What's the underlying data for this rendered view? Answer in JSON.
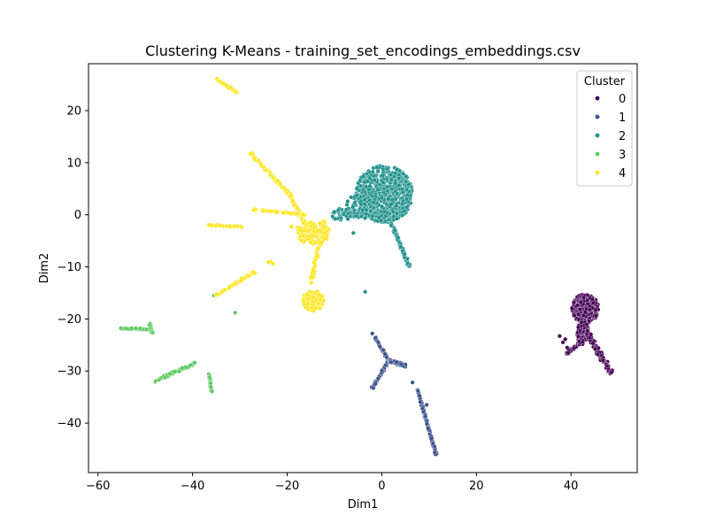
{
  "chart_data": {
    "type": "scatter",
    "title": "Clustering K-Means - training_set_encodings_embeddings.csv",
    "xlabel": "Dim1",
    "ylabel": "Dim2",
    "xlim": [
      -62,
      54
    ],
    "ylim": [
      -49.5,
      29
    ],
    "xticks": [
      -60,
      -40,
      -20,
      0,
      20,
      40
    ],
    "yticks": [
      -40,
      -30,
      -20,
      -10,
      0,
      10,
      20
    ],
    "grid": false,
    "legend": {
      "title": "Cluster",
      "placement": "top-right"
    },
    "series": [
      {
        "name": "0",
        "color": "#440154",
        "blobs": [
          {
            "cx": 43,
            "cy": -18,
            "rx": 2.8,
            "ry": 2.8,
            "n": 320
          },
          {
            "cx": 42.5,
            "cy": -22.5,
            "rx": 1.2,
            "ry": 2.5,
            "n": 80
          }
        ],
        "segments": [
          {
            "from": [
              43,
              -22
            ],
            "to": [
              48.5,
              -30.5
            ],
            "n": 110,
            "spread": 0.9
          },
          {
            "from": [
              42.5,
              -24
            ],
            "to": [
              39,
              -26.8
            ],
            "n": 45,
            "spread": 0.5
          }
        ],
        "points": [
          [
            37.6,
            -23.3
          ],
          [
            38.3,
            -24.5
          ],
          [
            38.8,
            -23.9
          ],
          [
            39.2,
            -25.5
          ]
        ]
      },
      {
        "name": "1",
        "color": "#3b528b",
        "blobs": [],
        "segments": [
          {
            "from": [
              -1.5,
              -23.5
            ],
            "to": [
              1.5,
              -28
            ],
            "n": 40,
            "spread": 0.35
          },
          {
            "from": [
              1.5,
              -28
            ],
            "to": [
              -2,
              -33.3
            ],
            "n": 55,
            "spread": 0.4
          },
          {
            "from": [
              1.5,
              -28
            ],
            "to": [
              5,
              -29
            ],
            "n": 35,
            "spread": 0.5
          },
          {
            "from": [
              7.5,
              -33.5
            ],
            "to": [
              11.5,
              -46
            ],
            "n": 120,
            "spread": 0.3
          }
        ],
        "points": [
          [
            -2,
            -22.8
          ],
          [
            6.5,
            -32.2
          ],
          [
            9.5,
            -36.5
          ]
        ]
      },
      {
        "name": "2",
        "color": "#21918c",
        "blobs": [
          {
            "cx": 0.5,
            "cy": 4,
            "rx": 6,
            "ry": 5.5,
            "n": 650
          },
          {
            "cx": -4.5,
            "cy": 1.5,
            "rx": 3,
            "ry": 2.5,
            "n": 90
          },
          {
            "cx": -8.5,
            "cy": 0,
            "rx": 2,
            "ry": 1.2,
            "n": 30
          }
        ],
        "segments": [
          {
            "from": [
              2,
              -1.5
            ],
            "to": [
              5.8,
              -10
            ],
            "n": 70,
            "spread": 0.5
          }
        ],
        "points": [
          [
            -6,
            -3.5
          ],
          [
            -3.5,
            -14.8
          ]
        ]
      },
      {
        "name": "3",
        "color": "#5ec962",
        "blobs": [],
        "segments": [
          {
            "from": [
              -55.5,
              -21.8
            ],
            "to": [
              -48.5,
              -22
            ],
            "n": 45,
            "spread": 0.25
          },
          {
            "from": [
              -49,
              -21
            ],
            "to": [
              -48.5,
              -22.8
            ],
            "n": 10,
            "spread": 0.3
          },
          {
            "from": [
              -48,
              -32
            ],
            "to": [
              -39.5,
              -28.5
            ],
            "n": 60,
            "spread": 0.4
          },
          {
            "from": [
              -36.5,
              -30.5
            ],
            "to": [
              -36,
              -34
            ],
            "n": 25,
            "spread": 0.3
          }
        ],
        "points": [
          [
            -35.5,
            -15.5
          ],
          [
            -35,
            -15.2
          ],
          [
            -31,
            -18.8
          ]
        ]
      },
      {
        "name": "4",
        "color": "#fde725",
        "blobs": [
          {
            "cx": -14.5,
            "cy": -3.5,
            "rx": 3.5,
            "ry": 2.2,
            "n": 120
          },
          {
            "cx": -14.5,
            "cy": -16.5,
            "rx": 2.2,
            "ry": 2,
            "n": 160
          }
        ],
        "segments": [
          {
            "from": [
              -35,
              26
            ],
            "to": [
              -30.5,
              23.5
            ],
            "n": 35,
            "spread": 0.3
          },
          {
            "from": [
              -28,
              12
            ],
            "to": [
              -19.5,
              4
            ],
            "n": 70,
            "spread": 0.5
          },
          {
            "from": [
              -19.5,
              4
            ],
            "to": [
              -15.5,
              -3
            ],
            "n": 40,
            "spread": 0.5
          },
          {
            "from": [
              -27,
              1
            ],
            "to": [
              -16,
              0
            ],
            "n": 50,
            "spread": 0.3
          },
          {
            "from": [
              -37,
              -2
            ],
            "to": [
              -29.5,
              -2.3
            ],
            "n": 30,
            "spread": 0.25
          },
          {
            "from": [
              -35,
              -15.5
            ],
            "to": [
              -27,
              -11
            ],
            "n": 45,
            "spread": 0.35
          },
          {
            "from": [
              -12,
              -1
            ],
            "to": [
              -15,
              -13
            ],
            "n": 70,
            "spread": 0.6
          },
          {
            "from": [
              -19,
              -2.5
            ],
            "to": [
              -12,
              -3.5
            ],
            "n": 40,
            "spread": 0.6
          }
        ],
        "points": [
          [
            -23.5,
            -9
          ],
          [
            -23,
            -9.4
          ],
          [
            -24,
            -9.1
          ]
        ]
      }
    ]
  }
}
